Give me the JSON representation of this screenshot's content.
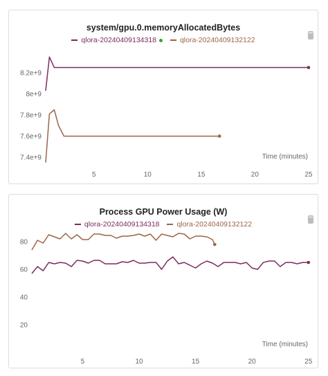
{
  "colors": {
    "series_a": "#7b2a5c",
    "series_b": "#9c6446",
    "live_dot": "#3aa336",
    "tick_text": "#666666",
    "grid": "#e6e6e6"
  },
  "icons": {
    "corner": "panel-lock-icon"
  },
  "chart_data": [
    {
      "type": "line",
      "title": "system/gpu.0.memoryAllocatedBytes",
      "xlabel": "Time (minutes)",
      "ylabel": "",
      "xlim": [
        0.5,
        25.2
      ],
      "ylim": [
        7335000000.0,
        8450000000.0
      ],
      "x_ticks": [
        5,
        10,
        15,
        20,
        25
      ],
      "y_ticks": [
        7400000000.0,
        7600000000.0,
        7800000000.0,
        8000000000.0,
        8200000000.0
      ],
      "y_tick_labels": [
        "7.4e+9",
        "7.6e+9",
        "7.8e+9",
        "8e+9",
        "8.2e+9"
      ],
      "grid": false,
      "legend_position": "top-center",
      "series": [
        {
          "name": "qlora-20240409134318",
          "color": "#7b2a5c",
          "live": true,
          "x": [
            0.5,
            0.85,
            1.3,
            25
          ],
          "y": [
            8030000000.0,
            8350000000.0,
            8250000000.0,
            8250000000.0
          ],
          "end_marker": true
        },
        {
          "name": "qlora-20240409132122",
          "color": "#9c6446",
          "live": false,
          "x": [
            0.5,
            0.85,
            1.3,
            1.7,
            2.2,
            16.7
          ],
          "y": [
            7350000000.0,
            7810000000.0,
            7850000000.0,
            7700000000.0,
            7600000000.0,
            7600000000.0
          ],
          "end_marker": true
        }
      ]
    },
    {
      "type": "line",
      "title": "Process GPU Power Usage (W)",
      "xlabel": "Time (minutes)",
      "ylabel": "",
      "xlim": [
        0.5,
        25.2
      ],
      "ylim": [
        0,
        90
      ],
      "x_ticks": [
        5,
        10,
        15,
        20,
        25
      ],
      "y_ticks": [
        20,
        40,
        60,
        80
      ],
      "y_tick_labels": [
        "20",
        "40",
        "60",
        "80"
      ],
      "grid": false,
      "legend_position": "top-center",
      "series": [
        {
          "name": "qlora-20240409134318",
          "color": "#7b2a5c",
          "live": false,
          "x": [
            0.5,
            1.0,
            1.5,
            2.0,
            2.5,
            3.0,
            3.5,
            4.0,
            4.5,
            5.0,
            5.5,
            6.0,
            6.5,
            7.0,
            7.5,
            8.0,
            8.5,
            9.0,
            9.5,
            10.0,
            10.5,
            11.0,
            11.5,
            12.0,
            12.5,
            13.0,
            13.5,
            14.0,
            14.5,
            15.0,
            15.5,
            16.0,
            16.5,
            17.0,
            17.5,
            18.0,
            18.5,
            19.0,
            19.5,
            20.0,
            20.5,
            21.0,
            21.5,
            22.0,
            22.5,
            23.0,
            23.5,
            24.0,
            24.5,
            25.0
          ],
          "y": [
            57,
            62,
            59,
            65,
            64,
            65,
            64.5,
            62,
            66.5,
            66,
            64.5,
            66.5,
            66.5,
            64,
            64,
            64,
            65.5,
            65,
            66.5,
            64.5,
            64.5,
            65,
            65,
            60,
            66,
            69,
            64,
            65,
            63,
            61,
            64,
            66,
            64.5,
            62,
            65,
            65,
            65,
            64,
            65,
            61,
            60,
            65,
            66,
            66,
            62,
            65,
            65,
            64,
            65,
            65
          ],
          "end_marker": true
        },
        {
          "name": "qlora-20240409132122",
          "color": "#9c6446",
          "live": false,
          "x": [
            0.5,
            1.0,
            1.5,
            2.0,
            2.5,
            3.0,
            3.5,
            4.0,
            4.5,
            5.0,
            5.5,
            6.0,
            6.5,
            7.0,
            7.5,
            8.0,
            8.5,
            9.0,
            9.5,
            10.0,
            10.5,
            11.0,
            11.5,
            12.0,
            12.5,
            13.0,
            13.5,
            14.0,
            14.5,
            15.0,
            15.5,
            16.0,
            16.5,
            16.7
          ],
          "y": [
            74,
            81,
            79,
            85,
            83.5,
            82,
            86,
            82,
            85,
            81.5,
            81.5,
            85.5,
            85.5,
            84.5,
            84.5,
            82.5,
            84,
            84,
            84.5,
            85.5,
            84,
            85.5,
            81,
            85.5,
            84.5,
            83.5,
            86,
            85.5,
            82,
            84,
            84,
            83.5,
            81.5,
            78
          ],
          "end_marker": true
        }
      ]
    }
  ]
}
